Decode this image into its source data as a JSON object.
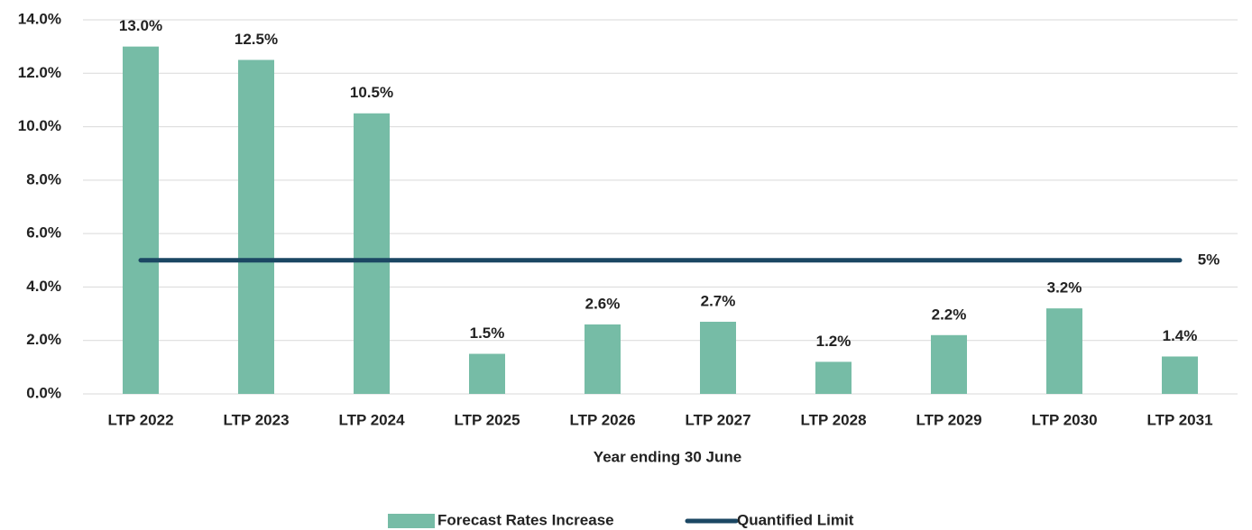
{
  "chart_data": {
    "type": "bar",
    "x_label": "Year ending 30 June",
    "categories": [
      "LTP 2022",
      "LTP 2023",
      "LTP 2024",
      "LTP 2025",
      "LTP 2026",
      "LTP 2027",
      "LTP 2028",
      "LTP 2029",
      "LTP 2030",
      "LTP 2031"
    ],
    "series": [
      {
        "name": "Forecast Rates Increase",
        "type": "bar",
        "color": "#76bca6",
        "values": [
          13.0,
          12.5,
          10.5,
          1.5,
          2.6,
          2.7,
          1.2,
          2.2,
          3.2,
          1.4
        ],
        "value_labels": [
          "13.0%",
          "12.5%",
          "10.5%",
          "1.5%",
          "2.6%",
          "2.7%",
          "1.2%",
          "2.2%",
          "3.2%",
          "1.4%"
        ]
      },
      {
        "name": "Quantified Limit",
        "type": "line",
        "color": "#1b4763",
        "values": [
          5,
          5,
          5,
          5,
          5,
          5,
          5,
          5,
          5,
          5
        ]
      }
    ],
    "annotations": [
      {
        "label": "5%"
      }
    ],
    "ylim": [
      0,
      14
    ],
    "yticks": [
      {
        "value": 0,
        "label": "0.0%"
      },
      {
        "value": 2,
        "label": "2.0%"
      },
      {
        "value": 4,
        "label": "4.0%"
      },
      {
        "value": 6,
        "label": "6.0%"
      },
      {
        "value": 8,
        "label": "8.0%"
      },
      {
        "value": 10,
        "label": "10.0%"
      },
      {
        "value": 12,
        "label": "12.0%"
      },
      {
        "value": 14,
        "label": "14.0%"
      }
    ],
    "grid": true,
    "legend": "bottom"
  }
}
